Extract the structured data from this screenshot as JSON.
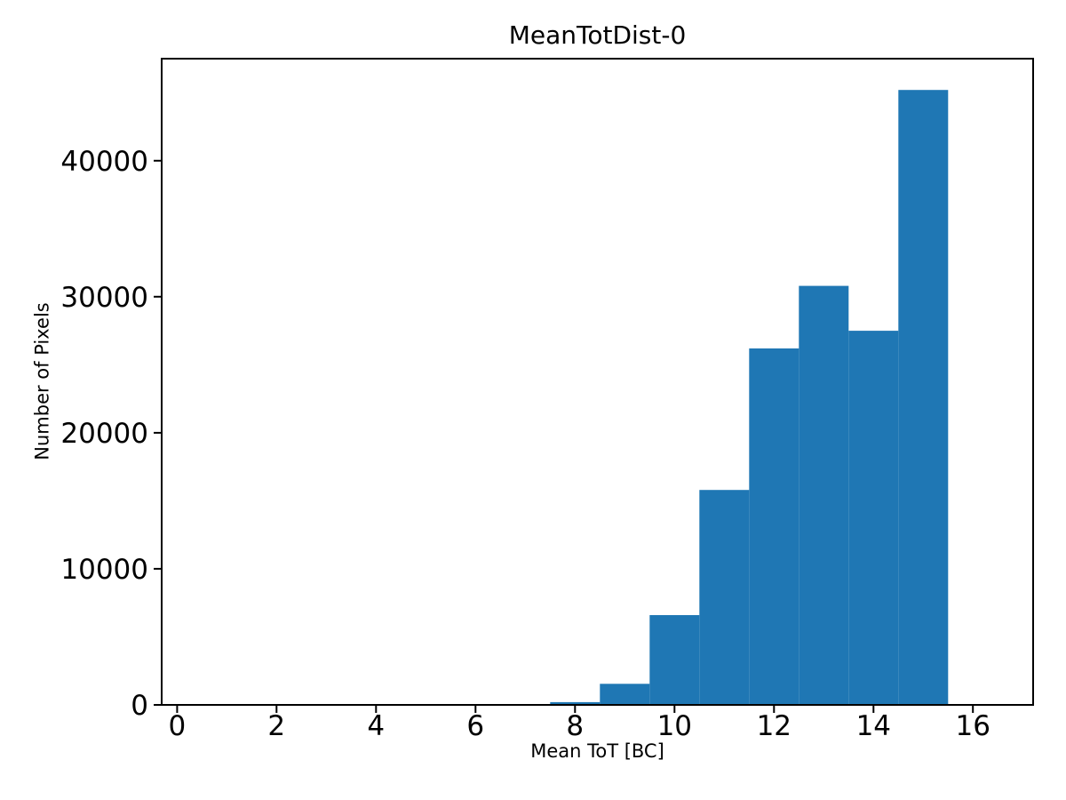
{
  "figure": {
    "background": "#ffffff"
  },
  "chart_data": {
    "type": "bar",
    "subtype": "histogram",
    "title": "MeanTotDist-0",
    "xlabel": "Mean ToT [BC]",
    "ylabel": "Number of Pixels",
    "bin_edges": [
      0.5,
      1.5,
      2.5,
      3.5,
      4.5,
      5.5,
      6.5,
      7.5,
      8.5,
      9.5,
      10.5,
      11.5,
      12.5,
      13.5,
      14.5,
      15.5,
      16.5
    ],
    "counts": [
      0,
      0,
      0,
      0,
      0,
      0,
      0,
      200,
      1550,
      6600,
      15800,
      26200,
      30800,
      27500,
      45200,
      0
    ],
    "x_ticks": [
      0,
      2,
      4,
      6,
      8,
      10,
      12,
      14,
      16
    ],
    "y_ticks": [
      0,
      10000,
      20000,
      30000,
      40000
    ],
    "xlim": [
      -0.31,
      17.21
    ],
    "ylim": [
      0,
      47500
    ],
    "grid": false,
    "legend": null,
    "bar_color": "#1f77b4",
    "axis_color": "#000000",
    "text_color": "#000000"
  }
}
